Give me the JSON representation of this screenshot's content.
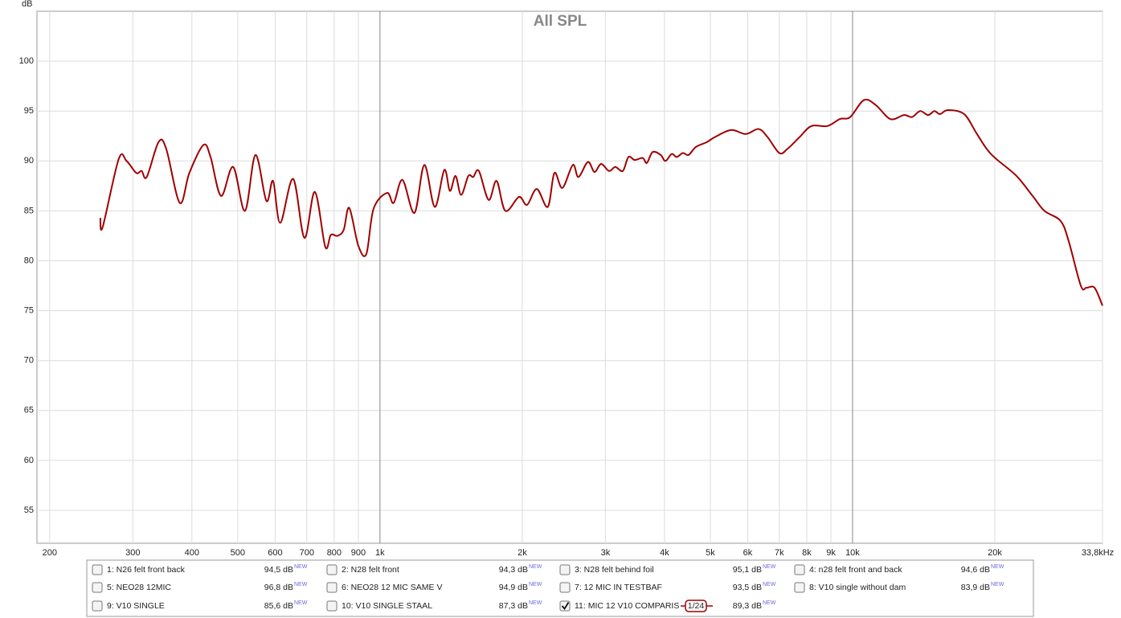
{
  "chart_data": {
    "type": "line",
    "title": "All SPL",
    "y_label": "dB",
    "log_x": true,
    "grid": true,
    "xlim": [
      188,
      33800
    ],
    "ylim": [
      51.7,
      105
    ],
    "yticks": [
      55,
      60,
      65,
      70,
      75,
      80,
      85,
      90,
      95,
      100
    ],
    "xticks": [
      200,
      300,
      400,
      500,
      600,
      700,
      800,
      900,
      {
        "value": 1000,
        "label": "1k"
      },
      {
        "value": 2000,
        "label": "2k"
      },
      {
        "value": 3000,
        "label": "3k"
      },
      {
        "value": 4000,
        "label": "4k"
      },
      {
        "value": 5000,
        "label": "5k"
      },
      {
        "value": 6000,
        "label": "6k"
      },
      {
        "value": 7000,
        "label": "7k"
      },
      {
        "value": 8000,
        "label": "8k"
      },
      {
        "value": 9000,
        "label": "9k"
      },
      {
        "value": 10000,
        "label": "10k"
      },
      {
        "value": 20000,
        "label": "20k"
      },
      {
        "value": 33800,
        "label": "33,8kHz"
      }
    ],
    "new_tag": "NEW",
    "smoothing": "1/24",
    "x": [
      256,
      259,
      280,
      291,
      305,
      313,
      321,
      340,
      353,
      377,
      395,
      423,
      438,
      461,
      489,
      518,
      545,
      575,
      594,
      615,
      655,
      692,
      728,
      766,
      787,
      813,
      838,
      861,
      900,
      936,
      969,
      1035,
      1069,
      1116,
      1183,
      1241,
      1306,
      1368,
      1406,
      1445,
      1485,
      1538,
      1575,
      1619,
      1698,
      1765,
      1842,
      1969,
      2047,
      2147,
      2265,
      2339,
      2432,
      2559,
      2630,
      2754,
      2844,
      2937,
      3053,
      3148,
      3265,
      3355,
      3459,
      3597,
      3670,
      3776,
      3926,
      4018,
      4143,
      4246,
      4375,
      4498,
      4659,
      4920,
      5117,
      5534,
      5943,
      6324,
      6607,
      6998,
      7278,
      7727,
      8185,
      8851,
      9397,
      9886,
      10568,
      11200,
      12023,
      12850,
      13360,
      13900,
      14450,
      14900,
      15310,
      15920,
      17220,
      18280,
      19230,
      20140,
      22230,
      24040,
      25470,
      27550,
      28650,
      30410,
      31260,
      32510,
      33800
    ],
    "series": [
      {
        "name": "1: N26 felt front back",
        "color": "#b89c00",
        "level": 94.5,
        "level_label": "94,5 dB",
        "checked": false
      },
      {
        "name": "2: N28 felt front",
        "color": "#2a7a2a",
        "level": 94.3,
        "level_label": "94,3 dB",
        "checked": false
      },
      {
        "name": "3: N28 felt behind foil",
        "color": "#1f3f8a",
        "level": 95.1,
        "level_label": "95,1 dB",
        "checked": false
      },
      {
        "name": "4: n28 felt front and back",
        "color": "#5a1a3a",
        "level": 94.6,
        "level_label": "94,6 dB",
        "checked": false
      },
      {
        "name": "5: NEO28 12MIC",
        "color": "#1a8a6a",
        "level": 96.8,
        "level_label": "96,8 dB",
        "checked": false
      },
      {
        "name": "6: NEO28 12 MIC SAME V",
        "color": "#104f50",
        "level": 94.9,
        "level_label": "94,9 dB",
        "checked": false
      },
      {
        "name": "7: 12 MIC IN TESTBAF",
        "color": "#a01010",
        "level": 93.5,
        "level_label": "93,5 dB",
        "checked": false
      },
      {
        "name": "8: V10 single without dam",
        "color": "#1f9a6a",
        "level": 83.9,
        "level_label": "83,9 dB",
        "checked": false
      },
      {
        "name": "9: V10 SINGLE",
        "color": "#8a1aa0",
        "level": 85.6,
        "level_label": "85,6 dB",
        "checked": false
      },
      {
        "name": "10: V10 SINGLE STAAL",
        "color": "#d03434",
        "level": 87.3,
        "level_label": "87,3 dB",
        "checked": false
      },
      {
        "name": "11: MIC 12 V10 COMPARIS",
        "color": "#a00000",
        "level": 89.3,
        "level_label": "89,3 dB",
        "checked": true,
        "values": [
          84.3,
          83.4,
          90.2,
          90,
          88.8,
          89,
          88.4,
          91.9,
          91.2,
          85.8,
          88.8,
          91.6,
          90.4,
          86.5,
          89.4,
          85,
          90.6,
          86,
          88,
          83.8,
          88.2,
          82.3,
          86.9,
          81.4,
          82.6,
          82.5,
          83.1,
          85.3,
          81.5,
          80.7,
          85.2,
          86.8,
          85.8,
          88.1,
          84.8,
          89.6,
          85.4,
          89.1,
          87,
          88.5,
          86.6,
          88.5,
          88.4,
          89,
          86.1,
          88,
          85,
          86.4,
          85.6,
          87.2,
          85.4,
          88.8,
          87.3,
          89.6,
          88.4,
          89.9,
          88.9,
          89.7,
          89,
          89.4,
          89,
          90.4,
          90.1,
          90.3,
          89.8,
          90.9,
          90.6,
          90,
          90.7,
          90.4,
          90.8,
          90.6,
          91.4,
          91.9,
          92.4,
          93.1,
          92.7,
          93.2,
          92.4,
          90.8,
          91.2,
          92.4,
          93.5,
          93.5,
          94.2,
          94.4,
          96.1,
          95.6,
          94.2,
          94.6,
          94.4,
          95,
          94.6,
          95,
          94.7,
          95.1,
          94.7,
          92.8,
          91.2,
          90.2,
          88.5,
          86.5,
          85,
          84,
          82,
          77.5,
          77.3,
          77.3,
          75.5
        ]
      }
    ]
  }
}
